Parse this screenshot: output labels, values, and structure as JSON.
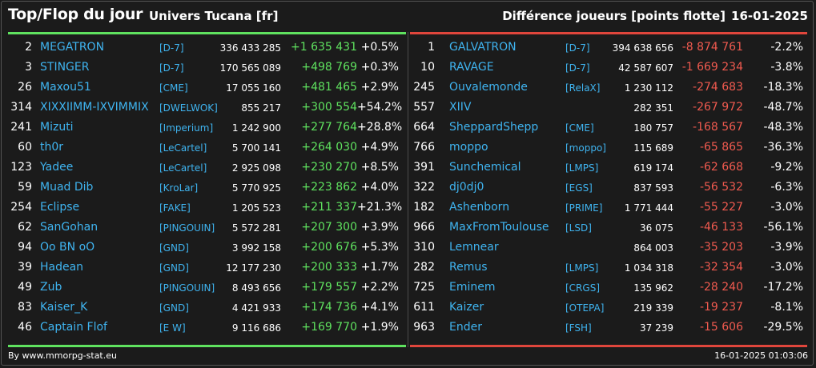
{
  "header": {
    "title": "Top/Flop du jour",
    "server": "Univers Tucana [fr]",
    "metric": "Différence joueurs [points flotte]",
    "date": "16-01-2025"
  },
  "colors": {
    "top": "#5fe25f",
    "flop": "#e0463c",
    "name": "#3fb4f0"
  },
  "top": [
    {
      "rank": "2",
      "name": "MEGATRON",
      "guild": "[D-7]",
      "points": "336 433 285",
      "diff": "+1 635 431",
      "pct": "+0.5%"
    },
    {
      "rank": "3",
      "name": "STINGER",
      "guild": "[D-7]",
      "points": "170 565 089",
      "diff": "+498 769",
      "pct": "+0.3%"
    },
    {
      "rank": "26",
      "name": "Maxou51",
      "guild": "[CME]",
      "points": "17 055 160",
      "diff": "+481 465",
      "pct": "+2.9%"
    },
    {
      "rank": "314",
      "name": "XIXXIIMM-IXVIMMIX",
      "guild": "[DWELWOK]",
      "points": "855 217",
      "diff": "+300 554",
      "pct": "+54.2%"
    },
    {
      "rank": "241",
      "name": "Mizuti",
      "guild": "[Imperium]",
      "points": "1 242 900",
      "diff": "+277 764",
      "pct": "+28.8%"
    },
    {
      "rank": "60",
      "name": "th0r",
      "guild": "[LeCartel]",
      "points": "5 700 141",
      "diff": "+264 030",
      "pct": "+4.9%"
    },
    {
      "rank": "123",
      "name": "Yadee",
      "guild": "[LeCartel]",
      "points": "2 925 098",
      "diff": "+230 270",
      "pct": "+8.5%"
    },
    {
      "rank": "59",
      "name": "Muad Dib",
      "guild": "[KroLar]",
      "points": "5 770 925",
      "diff": "+223 862",
      "pct": "+4.0%"
    },
    {
      "rank": "254",
      "name": "Eclipse",
      "guild": "[FAKE]",
      "points": "1 205 523",
      "diff": "+211 337",
      "pct": "+21.3%"
    },
    {
      "rank": "62",
      "name": "SanGohan",
      "guild": "[PINGOUIN]",
      "points": "5 572 281",
      "diff": "+207 300",
      "pct": "+3.9%"
    },
    {
      "rank": "94",
      "name": "Oo BN oO",
      "guild": "[GND]",
      "points": "3 992 158",
      "diff": "+200 676",
      "pct": "+5.3%"
    },
    {
      "rank": "39",
      "name": "Hadean",
      "guild": "[GND]",
      "points": "12 177 230",
      "diff": "+200 333",
      "pct": "+1.7%"
    },
    {
      "rank": "49",
      "name": "Zub",
      "guild": "[PINGOUIN]",
      "points": "8 493 656",
      "diff": "+179 557",
      "pct": "+2.2%"
    },
    {
      "rank": "83",
      "name": "Kaiser_K",
      "guild": "[GND]",
      "points": "4 421 933",
      "diff": "+174 736",
      "pct": "+4.1%"
    },
    {
      "rank": "46",
      "name": "Captain Flof",
      "guild": "[E W]",
      "points": "9 116 686",
      "diff": "+169 770",
      "pct": "+1.9%"
    }
  ],
  "flop": [
    {
      "rank": "1",
      "name": "GALVATRON",
      "guild": "[D-7]",
      "points": "394 638 656",
      "diff": "-8 874 761",
      "pct": "-2.2%"
    },
    {
      "rank": "10",
      "name": "RAVAGE",
      "guild": "[D-7]",
      "points": "42 587 607",
      "diff": "-1 669 234",
      "pct": "-3.8%"
    },
    {
      "rank": "245",
      "name": "Ouvalemonde",
      "guild": "[RelaX]",
      "points": "1 230 112",
      "diff": "-274 683",
      "pct": "-18.3%"
    },
    {
      "rank": "557",
      "name": "XIIV",
      "guild": "",
      "points": "282 351",
      "diff": "-267 972",
      "pct": "-48.7%"
    },
    {
      "rank": "664",
      "name": "SheppardShepp",
      "guild": "[CME]",
      "points": "180 757",
      "diff": "-168 567",
      "pct": "-48.3%"
    },
    {
      "rank": "766",
      "name": "moppo",
      "guild": "[moppo]",
      "points": "115 689",
      "diff": "-65 865",
      "pct": "-36.3%"
    },
    {
      "rank": "391",
      "name": "Sunchemical",
      "guild": "[LMPS]",
      "points": "619 174",
      "diff": "-62 668",
      "pct": "-9.2%"
    },
    {
      "rank": "322",
      "name": "dj0dj0",
      "guild": "[EGS]",
      "points": "837 593",
      "diff": "-56 532",
      "pct": "-6.3%"
    },
    {
      "rank": "182",
      "name": "Ashenborn",
      "guild": "[PRIME]",
      "points": "1 771 444",
      "diff": "-55 227",
      "pct": "-3.0%"
    },
    {
      "rank": "966",
      "name": "MaxFromToulouse",
      "guild": "[LSD]",
      "points": "36 075",
      "diff": "-46 133",
      "pct": "-56.1%"
    },
    {
      "rank": "310",
      "name": "Lemnear",
      "guild": "",
      "points": "864 003",
      "diff": "-35 203",
      "pct": "-3.9%"
    },
    {
      "rank": "282",
      "name": "Remus",
      "guild": "[LMPS]",
      "points": "1 034 318",
      "diff": "-32 354",
      "pct": "-3.0%"
    },
    {
      "rank": "725",
      "name": "Eminem",
      "guild": "[CRGS]",
      "points": "135 962",
      "diff": "-28 240",
      "pct": "-17.2%"
    },
    {
      "rank": "611",
      "name": "Kaizer",
      "guild": "[OTEPA]",
      "points": "219 339",
      "diff": "-19 237",
      "pct": "-8.1%"
    },
    {
      "rank": "963",
      "name": "Ender",
      "guild": "[FSH]",
      "points": "37 239",
      "diff": "-15 606",
      "pct": "-29.5%"
    }
  ],
  "footer": {
    "credit": "By www.mmorpg-stat.eu",
    "timestamp": "16-01-2025 01:03:06"
  }
}
